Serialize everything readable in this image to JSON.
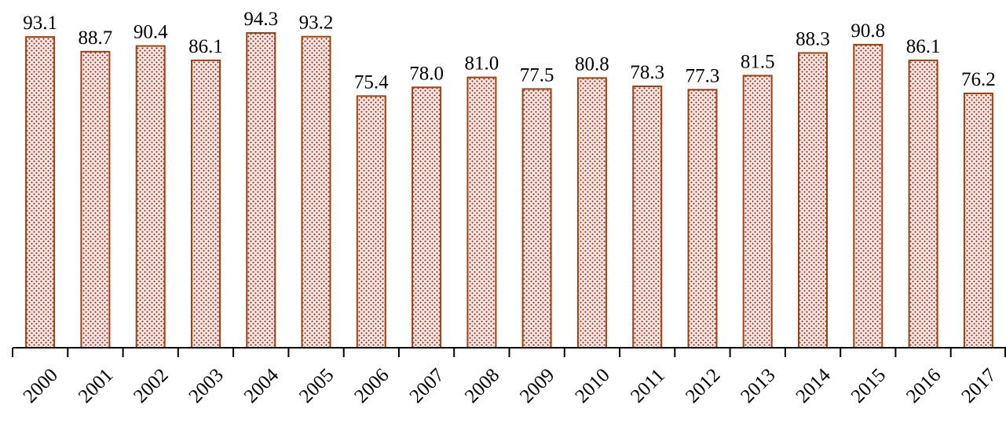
{
  "chart_data": {
    "type": "bar",
    "title": "",
    "xlabel": "",
    "ylabel": "",
    "categories": [
      "2000",
      "2001",
      "2002",
      "2003",
      "2004",
      "2005",
      "2006",
      "2007",
      "2008",
      "2009",
      "2010",
      "2011",
      "2012",
      "2013",
      "2014",
      "2015",
      "2016",
      "2017"
    ],
    "values": [
      93.1,
      88.7,
      90.4,
      86.1,
      94.3,
      93.2,
      75.4,
      78.0,
      81.0,
      77.5,
      80.8,
      78.3,
      77.3,
      81.5,
      88.3,
      90.8,
      86.1,
      76.2
    ],
    "value_labels": [
      "93.1",
      "88.7",
      "90.4",
      "86.1",
      "94.3",
      "93.2",
      "75.4",
      "78.0",
      "81.0",
      "77.5",
      "80.8",
      "78.3",
      "77.3",
      "81.5",
      "88.3",
      "90.8",
      "86.1",
      "76.2"
    ],
    "ylim": [
      0,
      94.3
    ],
    "grid": false,
    "legend": "none",
    "bar_fill_color": "#fce8e0",
    "bar_dot_color": "#8b1a1a",
    "bar_edge_color": "#a0420f",
    "tick_label_rotation": "-45"
  }
}
